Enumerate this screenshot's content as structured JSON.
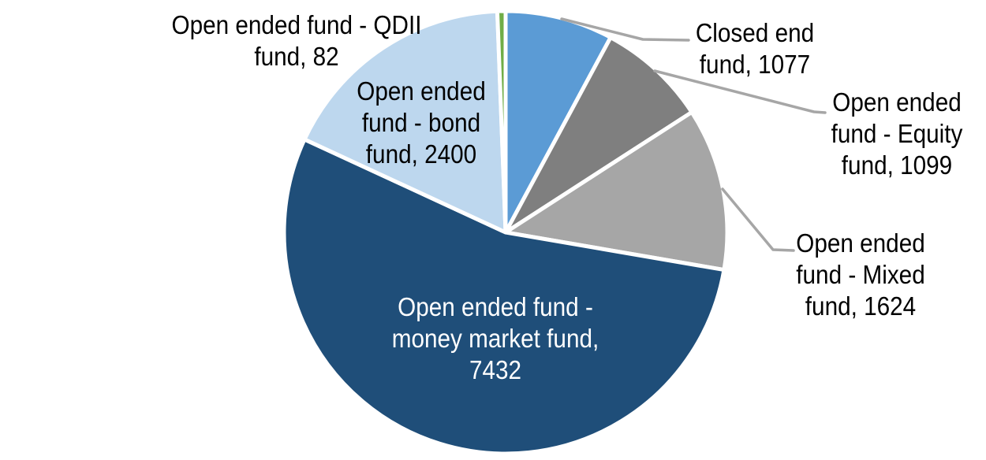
{
  "chart_data": {
    "type": "pie",
    "title": "",
    "direction": "clockwise",
    "start_angle_deg": 0,
    "total": 13714,
    "background_color": "#FFFFFF",
    "separator_color": "#FFFFFF",
    "leader_line_color": "#A6A6A6",
    "label_text_color": "#000000",
    "slices": [
      {
        "label": "Closed end fund",
        "value": 1077,
        "color": "#5B9BD5",
        "data_label": "Closed end\nfund, 1077",
        "label_placement": "outside",
        "leader_line": true
      },
      {
        "label": "Open ended fund - Equity fund",
        "value": 1099,
        "color": "#7F7F7F",
        "data_label": "Open ended\nfund - Equity\nfund, 1099",
        "label_placement": "outside",
        "leader_line": true
      },
      {
        "label": "Open ended fund - Mixed fund",
        "value": 1624,
        "color": "#A6A6A6",
        "data_label": "Open ended\nfund - Mixed\nfund, 1624",
        "label_placement": "outside",
        "leader_line": true
      },
      {
        "label": "Open ended fund - money market fund",
        "value": 7432,
        "color": "#1F4E79",
        "data_label": "Open ended fund -\nmoney market fund,\n7432",
        "label_placement": "inside",
        "text_color": "#FFFFFF",
        "leader_line": false
      },
      {
        "label": "Open ended fund - bond fund",
        "value": 2400,
        "color": "#BDD7EE",
        "data_label": "Open ended\nfund - bond\nfund, 2400",
        "label_placement": "outside",
        "leader_line": false
      },
      {
        "label": "Open ended fund - QDII fund",
        "value": 82,
        "color": "#70AD47",
        "data_label": "Open ended fund - QDII\nfund, 82",
        "label_placement": "outside",
        "leader_line": false
      }
    ]
  }
}
